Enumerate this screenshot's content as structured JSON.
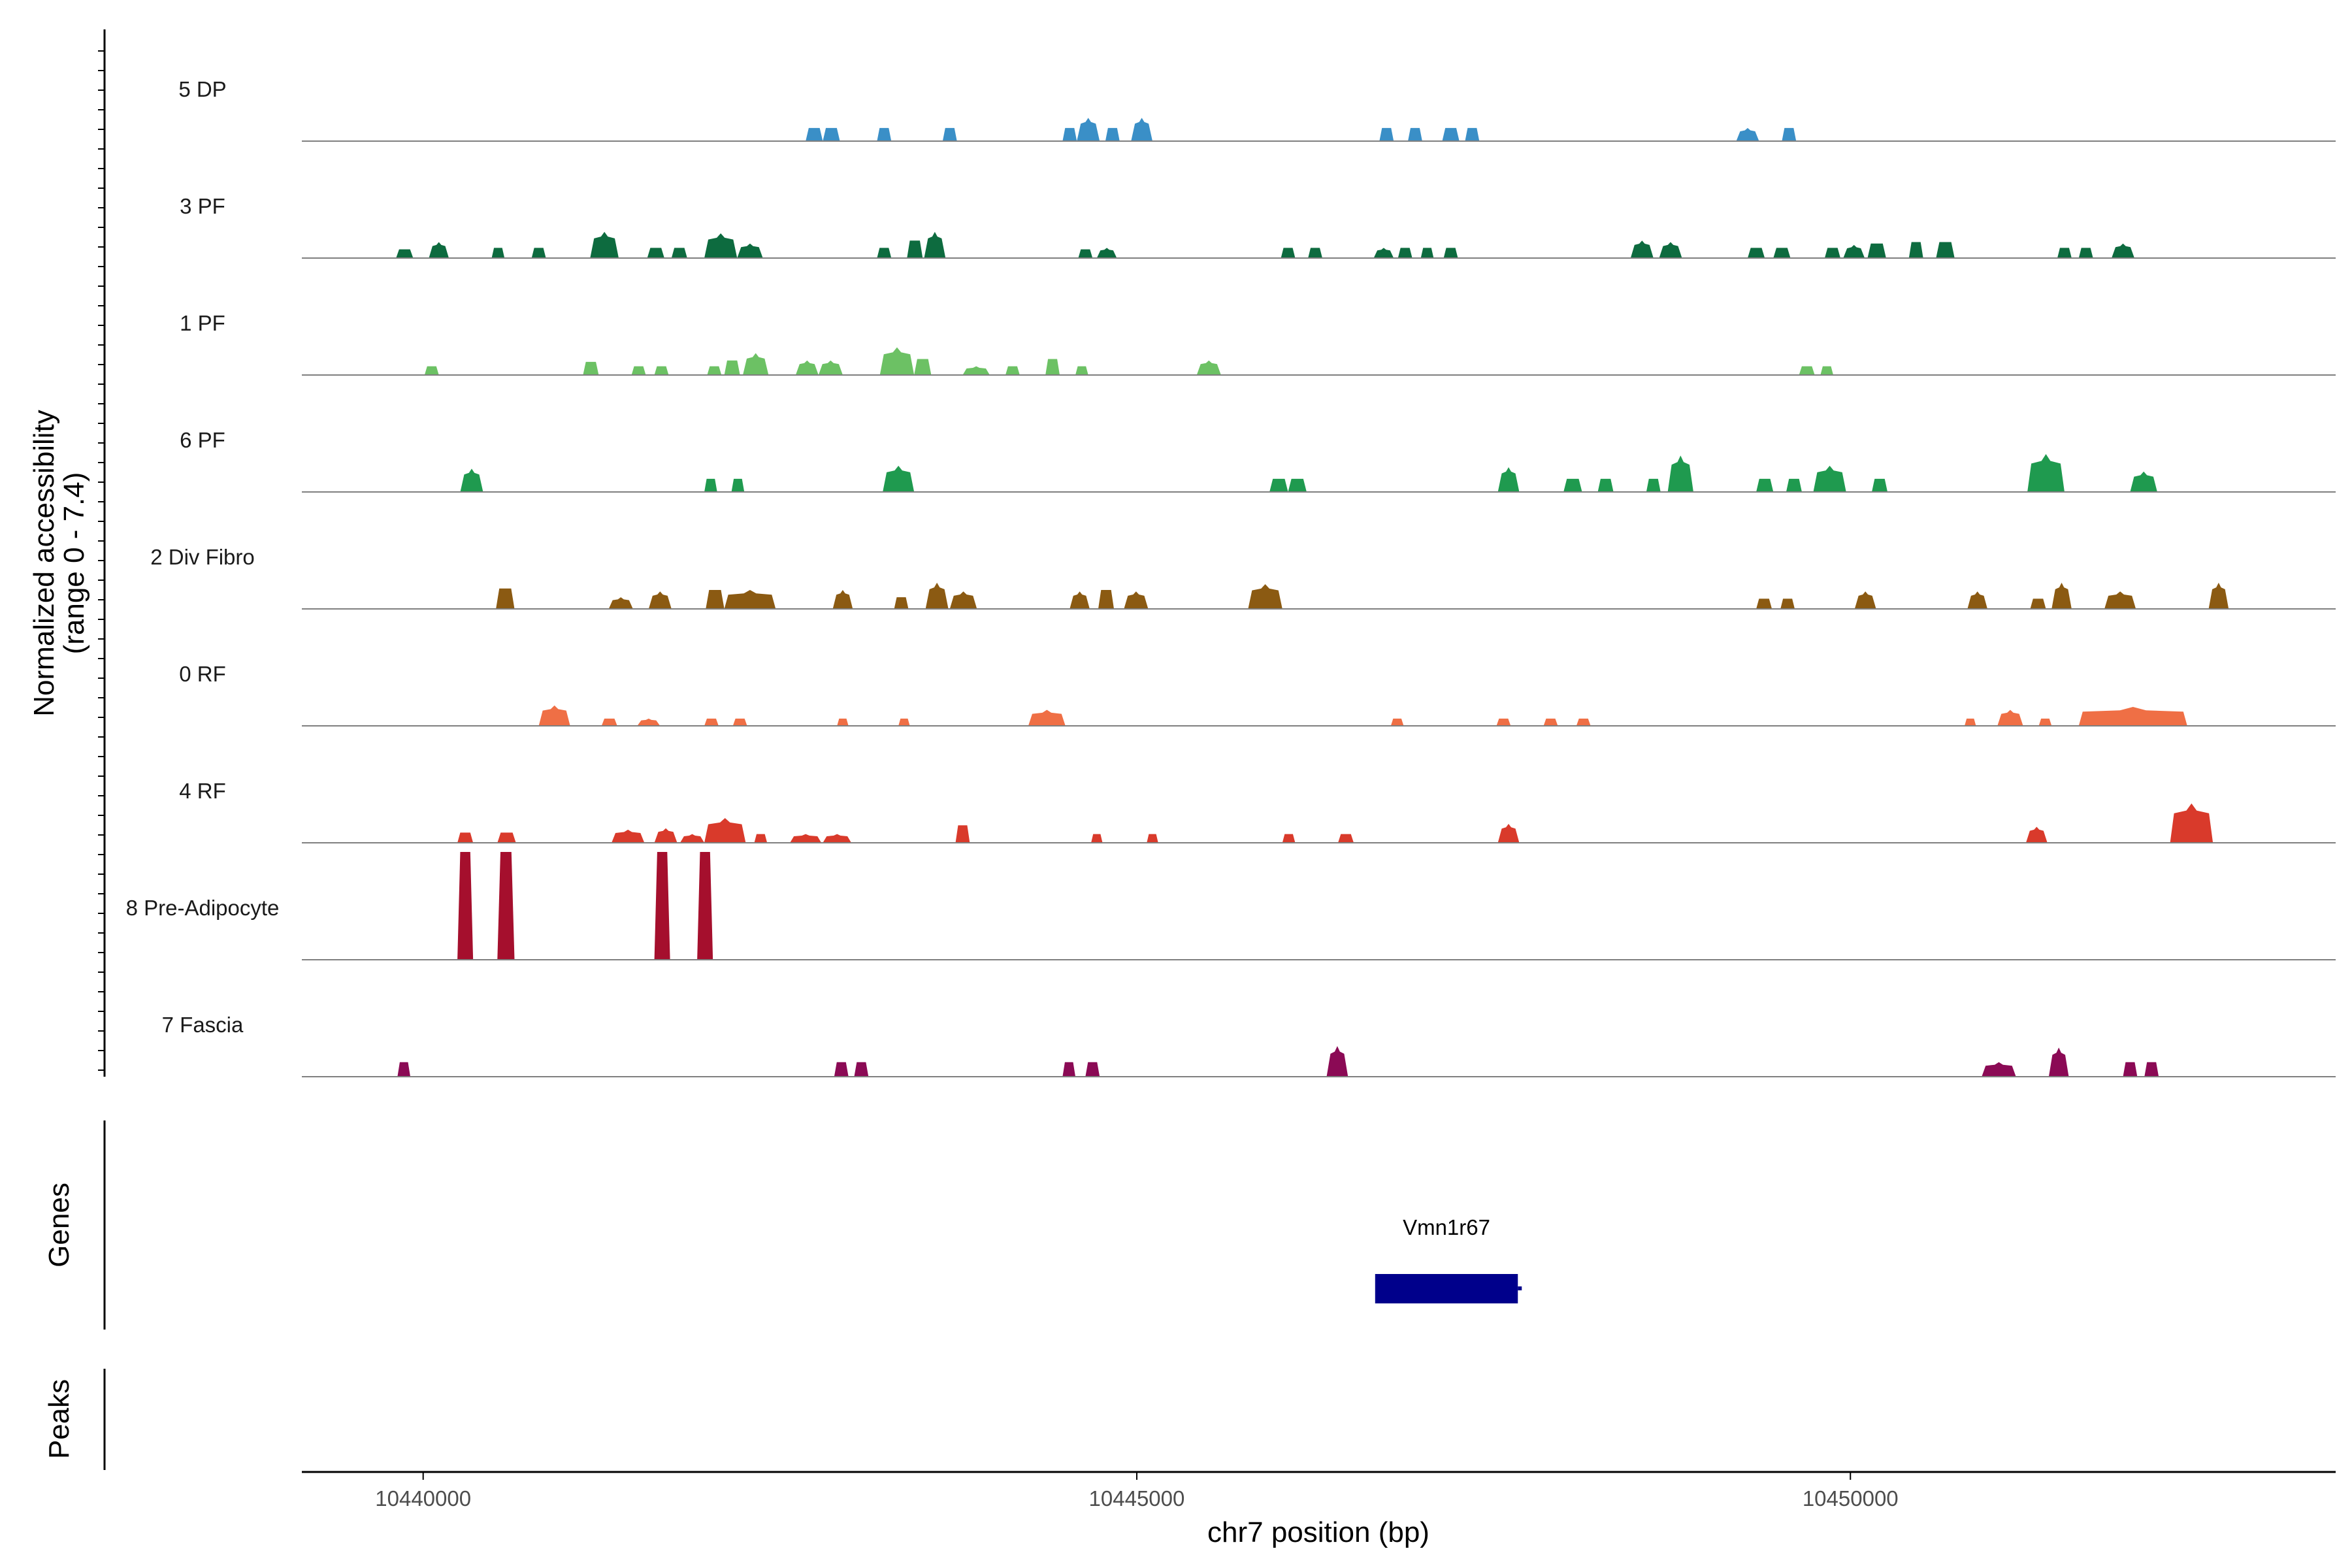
{
  "chart_data": {
    "type": "area",
    "title": "",
    "y_axis_title_line1": "Normalized accessibility",
    "y_axis_title_line2": "(range 0 - 7.4)",
    "ylim": [
      0,
      7.4
    ],
    "xlabel": "chr7 position (bp)",
    "xlim": [
      10439150,
      10453400
    ],
    "xticks": [
      10440000,
      10445000,
      10450000
    ],
    "xtick_labels": [
      "10440000",
      "10445000",
      "10450000"
    ],
    "genes_label": "Genes",
    "peaks_label": "Peaks",
    "genes": [
      {
        "name": "Vmn1r67",
        "start": 10446670,
        "end": 10447670,
        "color": "#00008b"
      }
    ],
    "tracks": [
      {
        "name": "5 DP",
        "color": "#3a8fc7",
        "peaks": [
          [
            10442680,
            10442800,
            0.9
          ],
          [
            10442800,
            10442920,
            0.9
          ],
          [
            10443180,
            10443280,
            0.9
          ],
          [
            10443640,
            10443740,
            0.9
          ],
          [
            10444480,
            10444580,
            0.9
          ],
          [
            10444580,
            10444740,
            1.6
          ],
          [
            10444780,
            10444880,
            0.9
          ],
          [
            10444960,
            10445110,
            1.6
          ],
          [
            10446700,
            10446800,
            0.9
          ],
          [
            10446900,
            10447000,
            0.9
          ],
          [
            10447140,
            10447260,
            0.9
          ],
          [
            10447300,
            10447400,
            0.9
          ],
          [
            10449200,
            10449360,
            0.9
          ],
          [
            10449520,
            10449620,
            0.9
          ]
        ]
      },
      {
        "name": "3 PF",
        "color": "#0d6b3f",
        "peaks": [
          [
            10439810,
            10439930,
            0.6
          ],
          [
            10440040,
            10440180,
            1.1
          ],
          [
            10440480,
            10440570,
            0.7
          ],
          [
            10440760,
            10440860,
            0.7
          ],
          [
            10441170,
            10441370,
            1.8
          ],
          [
            10441570,
            10441690,
            0.7
          ],
          [
            10441740,
            10441850,
            0.7
          ],
          [
            10441970,
            10442200,
            1.7
          ],
          [
            10442200,
            10442380,
            1.0
          ],
          [
            10443180,
            10443280,
            0.7
          ],
          [
            10443390,
            10443500,
            1.2
          ],
          [
            10443510,
            10443660,
            1.8
          ],
          [
            10444590,
            10444690,
            0.6
          ],
          [
            10444720,
            10444860,
            0.7
          ],
          [
            10446010,
            10446110,
            0.7
          ],
          [
            10446200,
            10446300,
            0.7
          ],
          [
            10446660,
            10446800,
            0.7
          ],
          [
            10446830,
            10446930,
            0.7
          ],
          [
            10446990,
            10447080,
            0.7
          ],
          [
            10447150,
            10447250,
            0.7
          ],
          [
            10448460,
            10448620,
            1.2
          ],
          [
            10448660,
            10448820,
            1.1
          ],
          [
            10449280,
            10449400,
            0.7
          ],
          [
            10449460,
            10449580,
            0.7
          ],
          [
            10449820,
            10449930,
            0.7
          ],
          [
            10449950,
            10450100,
            0.9
          ],
          [
            10450120,
            10450250,
            1.0
          ],
          [
            10450410,
            10450510,
            1.1
          ],
          [
            10450600,
            10450730,
            1.1
          ],
          [
            10451450,
            10451550,
            0.7
          ],
          [
            10451600,
            10451700,
            0.7
          ],
          [
            10451830,
            10451990,
            1.0
          ]
        ]
      },
      {
        "name": "1 PF",
        "color": "#6cc164",
        "peaks": [
          [
            10440010,
            10440110,
            0.6
          ],
          [
            10441120,
            10441230,
            0.9
          ],
          [
            10441460,
            10441560,
            0.6
          ],
          [
            10441620,
            10441720,
            0.6
          ],
          [
            10441990,
            10442090,
            0.6
          ],
          [
            10442110,
            10442220,
            1.0
          ],
          [
            10442240,
            10442420,
            1.5
          ],
          [
            10442610,
            10442770,
            1.0
          ],
          [
            10442770,
            10442940,
            1.0
          ],
          [
            10443200,
            10443440,
            1.9
          ],
          [
            10443440,
            10443560,
            1.1
          ],
          [
            10443780,
            10443970,
            0.6
          ],
          [
            10444080,
            10444180,
            0.6
          ],
          [
            10444360,
            10444460,
            1.1
          ],
          [
            10444570,
            10444660,
            0.6
          ],
          [
            10445420,
            10445590,
            1.0
          ],
          [
            10449640,
            10449750,
            0.6
          ],
          [
            10449790,
            10449880,
            0.6
          ]
        ]
      },
      {
        "name": "6 PF",
        "color": "#1f9a4f",
        "peaks": [
          [
            10440260,
            10440420,
            1.6
          ],
          [
            10441970,
            10442060,
            0.9
          ],
          [
            10442160,
            10442250,
            0.9
          ],
          [
            10443220,
            10443440,
            1.8
          ],
          [
            10445930,
            10446060,
            0.9
          ],
          [
            10446060,
            10446190,
            0.9
          ],
          [
            10447530,
            10447680,
            1.7
          ],
          [
            10447990,
            10448120,
            0.9
          ],
          [
            10448230,
            10448340,
            0.9
          ],
          [
            10448570,
            10448670,
            0.9
          ],
          [
            10448720,
            10448900,
            2.5
          ],
          [
            10449340,
            10449460,
            0.9
          ],
          [
            10449550,
            10449660,
            0.9
          ],
          [
            10449740,
            10449970,
            1.8
          ],
          [
            10450150,
            10450260,
            0.9
          ],
          [
            10451240,
            10451500,
            2.6
          ],
          [
            10451960,
            10452150,
            1.4
          ]
        ]
      },
      {
        "name": "2 Div Fibro",
        "color": "#8b5a12",
        "peaks": [
          [
            10440510,
            10440640,
            1.4
          ],
          [
            10441300,
            10441470,
            0.8
          ],
          [
            10441580,
            10441740,
            1.2
          ],
          [
            10441980,
            10442110,
            1.3
          ],
          [
            10442110,
            10442470,
            1.3
          ],
          [
            10442870,
            10443010,
            1.3
          ],
          [
            10443300,
            10443400,
            0.8
          ],
          [
            10443520,
            10443680,
            1.8
          ],
          [
            10443690,
            10443880,
            1.2
          ],
          [
            10444530,
            10444670,
            1.2
          ],
          [
            10444730,
            10444840,
            1.3
          ],
          [
            10444910,
            10445080,
            1.2
          ],
          [
            10445780,
            10446020,
            1.7
          ],
          [
            10449340,
            10449450,
            0.7
          ],
          [
            10449510,
            10449610,
            0.7
          ],
          [
            10450030,
            10450180,
            1.2
          ],
          [
            10450820,
            10450960,
            1.2
          ],
          [
            10451260,
            10451370,
            0.7
          ],
          [
            10451410,
            10451550,
            1.8
          ],
          [
            10451780,
            10452000,
            1.2
          ],
          [
            10452510,
            10452650,
            1.8
          ]
        ]
      },
      {
        "name": "0 RF",
        "color": "#ef6f45",
        "peaks": [
          [
            10440810,
            10441030,
            1.4
          ],
          [
            10441250,
            10441360,
            0.5
          ],
          [
            10441500,
            10441660,
            0.5
          ],
          [
            10441970,
            10442070,
            0.5
          ],
          [
            10442170,
            10442270,
            0.5
          ],
          [
            10442900,
            10442980,
            0.5
          ],
          [
            10443330,
            10443410,
            0.5
          ],
          [
            10444240,
            10444500,
            1.1
          ],
          [
            10446780,
            10446870,
            0.5
          ],
          [
            10447520,
            10447620,
            0.5
          ],
          [
            10447850,
            10447950,
            0.5
          ],
          [
            10448080,
            10448180,
            0.5
          ],
          [
            10450800,
            10450880,
            0.5
          ],
          [
            10451030,
            10451210,
            1.1
          ],
          [
            10451320,
            10451410,
            0.5
          ],
          [
            10451600,
            10452360,
            1.3
          ]
        ]
      },
      {
        "name": "4 RF",
        "color": "#d93a2b",
        "peaks": [
          [
            10440240,
            10440350,
            0.7
          ],
          [
            10440520,
            10440650,
            0.7
          ],
          [
            10441320,
            10441550,
            0.9
          ],
          [
            10441620,
            10441780,
            1.0
          ],
          [
            10441800,
            10441970,
            0.6
          ],
          [
            10441970,
            10442260,
            1.7
          ],
          [
            10442320,
            10442410,
            0.6
          ],
          [
            10442570,
            10442790,
            0.6
          ],
          [
            10442800,
            10443000,
            0.6
          ],
          [
            10443730,
            10443830,
            1.2
          ],
          [
            10444680,
            10444760,
            0.6
          ],
          [
            10445070,
            10445150,
            0.6
          ],
          [
            10446020,
            10446110,
            0.6
          ],
          [
            10446410,
            10446520,
            0.6
          ],
          [
            10447530,
            10447680,
            1.3
          ],
          [
            10451230,
            10451380,
            1.1
          ],
          [
            10452240,
            10452540,
            2.7
          ]
        ]
      },
      {
        "name": "8 Pre-Adipocyte",
        "color": "#a50f2d",
        "peaks": [
          [
            10440240,
            10440350,
            7.4
          ],
          [
            10440520,
            10440640,
            7.4
          ],
          [
            10441620,
            10441730,
            7.4
          ],
          [
            10441920,
            10442030,
            7.4
          ]
        ]
      },
      {
        "name": "7 Fascia",
        "color": "#8b0a55",
        "peaks": [
          [
            10439820,
            10439910,
            1.0
          ],
          [
            10442880,
            10442980,
            1.0
          ],
          [
            10443020,
            10443120,
            1.0
          ],
          [
            10444480,
            10444570,
            1.0
          ],
          [
            10444640,
            10444740,
            1.0
          ],
          [
            10446330,
            10446480,
            2.1
          ],
          [
            10450920,
            10451160,
            1.0
          ],
          [
            10451390,
            10451530,
            2.0
          ],
          [
            10451910,
            10452010,
            1.0
          ],
          [
            10452060,
            10452160,
            1.0
          ]
        ]
      }
    ]
  }
}
